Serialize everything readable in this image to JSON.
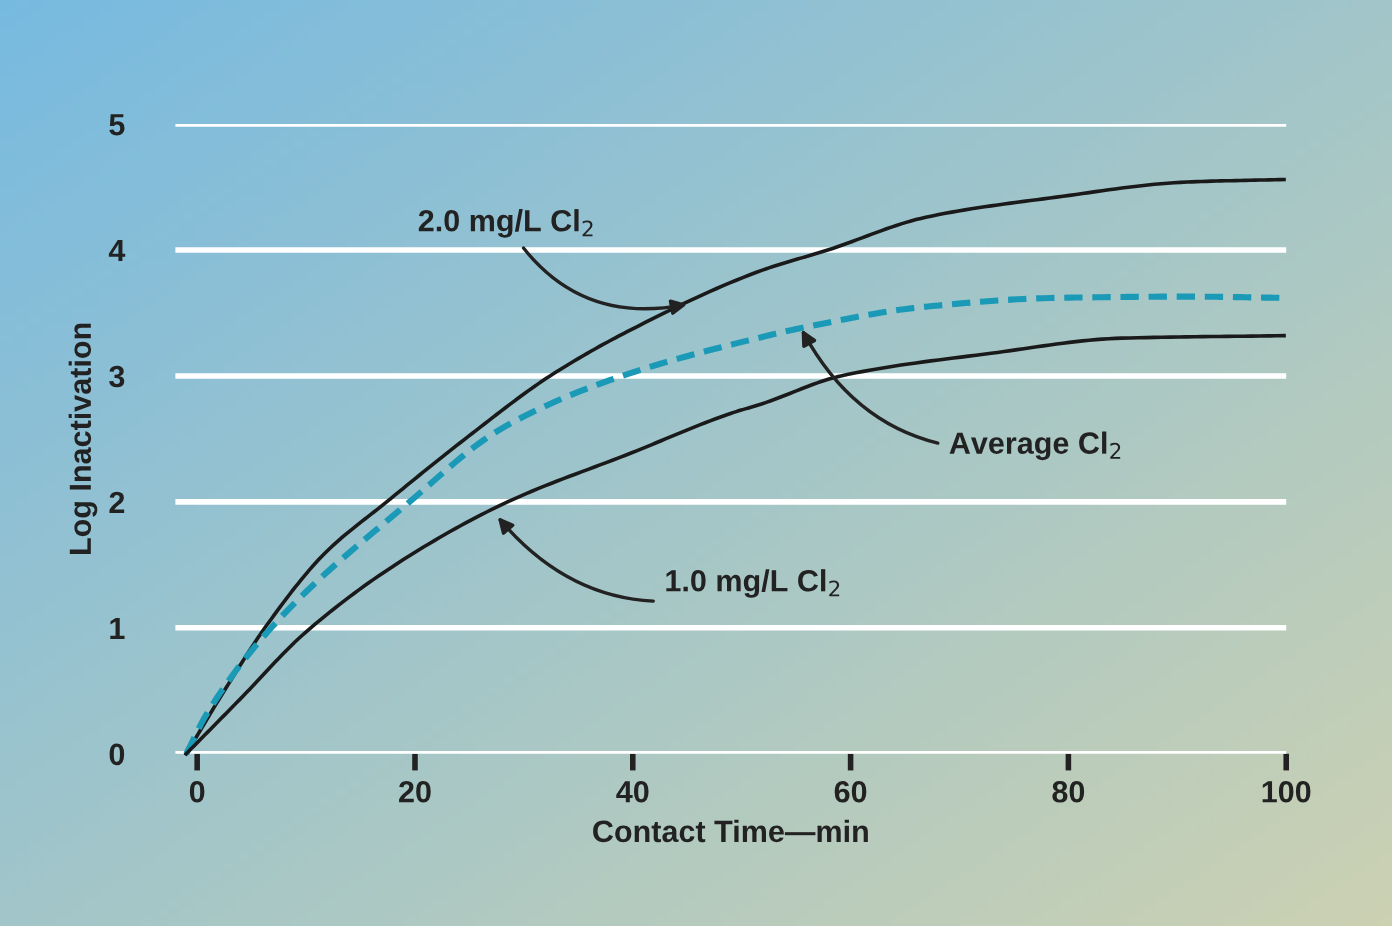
{
  "chart_data": {
    "type": "line",
    "xlabel": "Contact Time—min",
    "ylabel": "Log Inactivation",
    "xlim": [
      -2,
      100
    ],
    "ylim": [
      0,
      5
    ],
    "xticks": [
      0,
      20,
      40,
      60,
      80,
      100
    ],
    "yticks": [
      0,
      1,
      2,
      3,
      4,
      5
    ],
    "grid": "y",
    "series": [
      {
        "color": "#1a1a1a",
        "line_style": "solid",
        "x": [
          -1,
          2.7,
          6.3,
          11.7,
          17.4,
          24.9,
          32.4,
          39.9,
          51.9,
          57.9,
          66.9,
          78.9,
          90.9,
          99.8
        ],
        "values": [
          0,
          0.53,
          1.01,
          1.59,
          2,
          2.52,
          3,
          3.37,
          3.84,
          4,
          4.26,
          4.42,
          4.54,
          4.56
        ]
      },
      {
        "color": "#1b9ab8",
        "line_style": "dashed",
        "x": [
          -1,
          0.9,
          6.9,
          19.5,
          27.9,
          39,
          51.9,
          54.9,
          66.9,
          78.9,
          90.9,
          99.8
        ],
        "values": [
          0,
          0.32,
          1.01,
          2,
          2.58,
          3,
          3.31,
          3.37,
          3.55,
          3.62,
          3.63,
          3.62
        ]
      },
      {
        "color": "#1a1a1a",
        "line_style": "solid",
        "x": [
          -1,
          3.9,
          9.9,
          18.9,
          28.5,
          39.9,
          48.9,
          51.9,
          59.1,
          72.9,
          84.9,
          99.8
        ],
        "values": [
          0,
          0.43,
          0.96,
          1.54,
          2,
          2.39,
          2.7,
          2.78,
          3,
          3.18,
          3.3,
          3.32
        ]
      }
    ],
    "annotations": [
      {
        "text": "2.0 mg/L Cl$_{2}$",
        "x": 45,
        "y": 3.57
      },
      {
        "text": "Average Cl$_{2}$",
        "x": 55.5,
        "y": 3.37
      },
      {
        "text": "1.0 mg/L Cl$_{2}$",
        "x": 27.6,
        "y": 1.88
      }
    ]
  }
}
